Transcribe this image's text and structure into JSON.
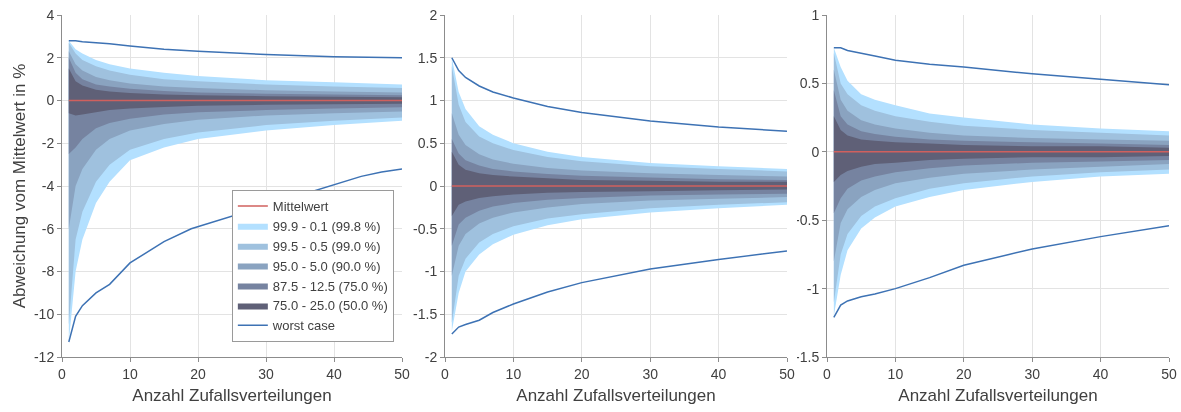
{
  "chart_data": [
    {
      "type": "area",
      "xlabel": "Anzahl Zufallsverteilungen",
      "ylabel": "Abweichung vom Mittelwert in %",
      "x": [
        1,
        2,
        3,
        5,
        7,
        10,
        15,
        20,
        30,
        40,
        50
      ],
      "xlim": [
        0,
        50
      ],
      "xticks": [
        0,
        10,
        20,
        30,
        40,
        50
      ],
      "ylim": [
        -12,
        4
      ],
      "yticks": [
        -12,
        -10,
        -8,
        -6,
        -4,
        -2,
        0,
        2,
        4
      ],
      "grid": true,
      "legend": "bottom right",
      "series": [
        {
          "name": "Mittelwert",
          "type": "line",
          "color": "#d0605e",
          "values": [
            0,
            0,
            0,
            0,
            0,
            0,
            0,
            0,
            0,
            0,
            0
          ]
        },
        {
          "name": "99.9 - 0.1 (99.8 %)",
          "type": "area",
          "color": "#b3e0ff",
          "values": [
            2.8,
            2.4,
            2.2,
            1.9,
            1.7,
            1.5,
            1.3,
            1.15,
            0.95,
            0.85,
            0.75
          ]
        },
        {
          "name": "99.5 - 0.5 (99.0 %)",
          "type": "area",
          "color": "#9fc1de",
          "values": [
            2.7,
            2.2,
            1.9,
            1.6,
            1.4,
            1.2,
            1.0,
            0.9,
            0.75,
            0.65,
            0.58
          ]
        },
        {
          "name": "95.0 - 5.0 (90.0 %)",
          "type": "area",
          "color": "#8aa3c0",
          "values": [
            2.3,
            1.7,
            1.4,
            1.1,
            0.95,
            0.8,
            0.65,
            0.58,
            0.48,
            0.42,
            0.37
          ]
        },
        {
          "name": "87.5 - 12.5 (75.0 %)",
          "type": "area",
          "color": "#7683a0",
          "values": [
            2.0,
            1.3,
            1.0,
            0.75,
            0.65,
            0.55,
            0.45,
            0.38,
            0.32,
            0.28,
            0.25
          ]
        },
        {
          "name": "75.0 - 25.0 (50.0 %)",
          "type": "area",
          "color": "#5f6077",
          "values": [
            1.5,
            0.9,
            0.7,
            0.5,
            0.42,
            0.35,
            0.28,
            0.24,
            0.2,
            0.17,
            0.15
          ]
        },
        {
          "type": "area",
          "color": "#b3e0ff",
          "values": [
            -11.3,
            -8,
            -6.5,
            -4.8,
            -3.8,
            -2.8,
            -2.2,
            -1.8,
            -1.4,
            -1.15,
            -0.95
          ]
        },
        {
          "type": "area",
          "color": "#9fc1de",
          "values": [
            -10.5,
            -6.5,
            -5.2,
            -3.8,
            -3.0,
            -2.3,
            -1.8,
            -1.5,
            -1.15,
            -0.95,
            -0.8
          ]
        },
        {
          "type": "area",
          "color": "#8aa3c0",
          "values": [
            -6,
            -4,
            -3.2,
            -2.3,
            -1.8,
            -1.4,
            -1.1,
            -0.9,
            -0.7,
            -0.6,
            -0.52
          ]
        },
        {
          "type": "area",
          "color": "#7683a0",
          "values": [
            -2.5,
            -2.2,
            -1.8,
            -1.3,
            -1.05,
            -0.85,
            -0.65,
            -0.55,
            -0.45,
            -0.38,
            -0.32
          ]
        },
        {
          "type": "area",
          "color": "#5f6077",
          "values": [
            -0.6,
            -0.7,
            -0.65,
            -0.55,
            -0.45,
            -0.38,
            -0.3,
            -0.25,
            -0.2,
            -0.17,
            -0.15
          ]
        },
        {
          "name": "worst case",
          "type": "line",
          "color": "#3d72b4",
          "values": [
            2.8,
            2.8,
            2.75,
            2.7,
            2.65,
            2.55,
            2.4,
            2.3,
            2.15,
            2.05,
            2.0
          ]
        },
        {
          "type": "line",
          "color": "#3d72b4",
          "x": [
            1,
            2,
            3,
            5,
            7,
            10,
            15,
            19,
            44,
            47,
            50
          ],
          "values": [
            -11.3,
            -10.1,
            -9.6,
            -9.0,
            -8.6,
            -7.6,
            -6.6,
            -6.0,
            -3.55,
            -3.35,
            -3.2
          ]
        }
      ]
    },
    {
      "type": "area",
      "xlabel": "Anzahl Zufallsverteilungen",
      "x": [
        1,
        2,
        3,
        5,
        7,
        10,
        15,
        20,
        30,
        40,
        50
      ],
      "xlim": [
        0,
        50
      ],
      "xticks": [
        0,
        10,
        20,
        30,
        40,
        50
      ],
      "ylim": [
        -2,
        2
      ],
      "yticks": [
        -2,
        -1.5,
        -1,
        -0.5,
        0,
        0.5,
        1,
        1.5,
        2
      ],
      "grid": true,
      "series": [
        {
          "type": "line",
          "color": "#d0605e",
          "values": [
            0,
            0,
            0,
            0,
            0,
            0,
            0,
            0,
            0,
            0,
            0
          ]
        },
        {
          "type": "area",
          "color": "#b3e0ff",
          "values": [
            1.5,
            1.1,
            0.9,
            0.7,
            0.6,
            0.5,
            0.4,
            0.34,
            0.27,
            0.23,
            0.2
          ]
        },
        {
          "type": "area",
          "color": "#9fc1de",
          "values": [
            1.4,
            0.95,
            0.75,
            0.58,
            0.5,
            0.42,
            0.34,
            0.29,
            0.23,
            0.2,
            0.17
          ]
        },
        {
          "type": "area",
          "color": "#8aa3c0",
          "values": [
            0.85,
            0.6,
            0.48,
            0.37,
            0.31,
            0.26,
            0.21,
            0.18,
            0.15,
            0.13,
            0.11
          ]
        },
        {
          "type": "area",
          "color": "#7683a0",
          "values": [
            0.55,
            0.38,
            0.3,
            0.24,
            0.2,
            0.17,
            0.14,
            0.12,
            0.1,
            0.08,
            0.07
          ]
        },
        {
          "type": "area",
          "color": "#5f6077",
          "values": [
            0.4,
            0.25,
            0.19,
            0.15,
            0.13,
            0.11,
            0.09,
            0.07,
            0.06,
            0.05,
            0.05
          ]
        },
        {
          "type": "area",
          "color": "#b3e0ff",
          "values": [
            -1.7,
            -1.25,
            -1.0,
            -0.8,
            -0.68,
            -0.57,
            -0.46,
            -0.39,
            -0.31,
            -0.26,
            -0.22
          ]
        },
        {
          "type": "area",
          "color": "#9fc1de",
          "values": [
            -1.6,
            -1.05,
            -0.85,
            -0.66,
            -0.56,
            -0.47,
            -0.38,
            -0.33,
            -0.26,
            -0.22,
            -0.19
          ]
        },
        {
          "type": "area",
          "color": "#8aa3c0",
          "values": [
            -1.05,
            -0.7,
            -0.56,
            -0.44,
            -0.37,
            -0.31,
            -0.25,
            -0.21,
            -0.17,
            -0.15,
            -0.13
          ]
        },
        {
          "type": "area",
          "color": "#7683a0",
          "values": [
            -0.7,
            -0.45,
            -0.37,
            -0.29,
            -0.24,
            -0.2,
            -0.16,
            -0.14,
            -0.11,
            -0.1,
            -0.09
          ]
        },
        {
          "type": "area",
          "color": "#5f6077",
          "values": [
            -0.35,
            -0.22,
            -0.18,
            -0.14,
            -0.12,
            -0.1,
            -0.08,
            -0.07,
            -0.06,
            -0.05,
            -0.04
          ]
        },
        {
          "type": "line",
          "color": "#3d72b4",
          "values": [
            1.5,
            1.35,
            1.27,
            1.17,
            1.1,
            1.03,
            0.93,
            0.86,
            0.76,
            0.69,
            0.64
          ]
        },
        {
          "type": "line",
          "color": "#3d72b4",
          "values": [
            -1.73,
            -1.65,
            -1.62,
            -1.57,
            -1.48,
            -1.38,
            -1.24,
            -1.13,
            -0.97,
            -0.86,
            -0.76
          ]
        }
      ]
    },
    {
      "type": "area",
      "xlabel": "Anzahl Zufallsverteilungen",
      "x": [
        1,
        2,
        3,
        5,
        7,
        10,
        15,
        20,
        30,
        40,
        50
      ],
      "xlim": [
        0,
        50
      ],
      "xticks": [
        0,
        10,
        20,
        30,
        40,
        50
      ],
      "ylim": [
        -1.5,
        1
      ],
      "yticks": [
        -1.5,
        -1,
        -0.5,
        0,
        0.5,
        1
      ],
      "grid": true,
      "series": [
        {
          "type": "line",
          "color": "#d0605e",
          "values": [
            0,
            0,
            0,
            0,
            0,
            0,
            0,
            0,
            0,
            0,
            0
          ]
        },
        {
          "type": "area",
          "color": "#b3e0ff",
          "values": [
            0.76,
            0.62,
            0.52,
            0.42,
            0.38,
            0.34,
            0.28,
            0.25,
            0.2,
            0.17,
            0.15
          ]
        },
        {
          "type": "area",
          "color": "#9fc1de",
          "values": [
            0.72,
            0.5,
            0.42,
            0.34,
            0.3,
            0.26,
            0.22,
            0.19,
            0.16,
            0.14,
            0.12
          ]
        },
        {
          "type": "area",
          "color": "#8aa3c0",
          "values": [
            0.6,
            0.38,
            0.3,
            0.23,
            0.2,
            0.17,
            0.14,
            0.12,
            0.1,
            0.09,
            0.08
          ]
        },
        {
          "type": "area",
          "color": "#7683a0",
          "values": [
            0.45,
            0.26,
            0.2,
            0.15,
            0.13,
            0.11,
            0.09,
            0.08,
            0.07,
            0.06,
            0.05
          ]
        },
        {
          "type": "area",
          "color": "#5f6077",
          "values": [
            0.26,
            0.16,
            0.12,
            0.09,
            0.08,
            0.07,
            0.06,
            0.05,
            0.04,
            0.04,
            0.03
          ]
        },
        {
          "type": "area",
          "color": "#b3e0ff",
          "values": [
            -1.2,
            -0.9,
            -0.72,
            -0.56,
            -0.48,
            -0.4,
            -0.33,
            -0.28,
            -0.22,
            -0.18,
            -0.16
          ]
        },
        {
          "type": "area",
          "color": "#9fc1de",
          "values": [
            -1.1,
            -0.75,
            -0.6,
            -0.47,
            -0.4,
            -0.34,
            -0.27,
            -0.23,
            -0.18,
            -0.15,
            -0.13
          ]
        },
        {
          "type": "area",
          "color": "#8aa3c0",
          "values": [
            -0.8,
            -0.52,
            -0.42,
            -0.33,
            -0.28,
            -0.23,
            -0.19,
            -0.16,
            -0.13,
            -0.11,
            -0.09
          ]
        },
        {
          "type": "area",
          "color": "#7683a0",
          "values": [
            -0.45,
            -0.34,
            -0.27,
            -0.21,
            -0.18,
            -0.15,
            -0.12,
            -0.1,
            -0.08,
            -0.07,
            -0.06
          ]
        },
        {
          "type": "area",
          "color": "#5f6077",
          "values": [
            -0.22,
            -0.17,
            -0.14,
            -0.11,
            -0.09,
            -0.08,
            -0.06,
            -0.05,
            -0.04,
            -0.04,
            -0.03
          ]
        },
        {
          "type": "line",
          "color": "#3d72b4",
          "values": [
            0.76,
            0.76,
            0.74,
            0.72,
            0.7,
            0.67,
            0.64,
            0.62,
            0.57,
            0.53,
            0.49
          ]
        },
        {
          "type": "line",
          "color": "#3d72b4",
          "values": [
            -1.21,
            -1.12,
            -1.09,
            -1.06,
            -1.04,
            -1.0,
            -0.92,
            -0.83,
            -0.71,
            -0.62,
            -0.54
          ]
        }
      ]
    }
  ]
}
